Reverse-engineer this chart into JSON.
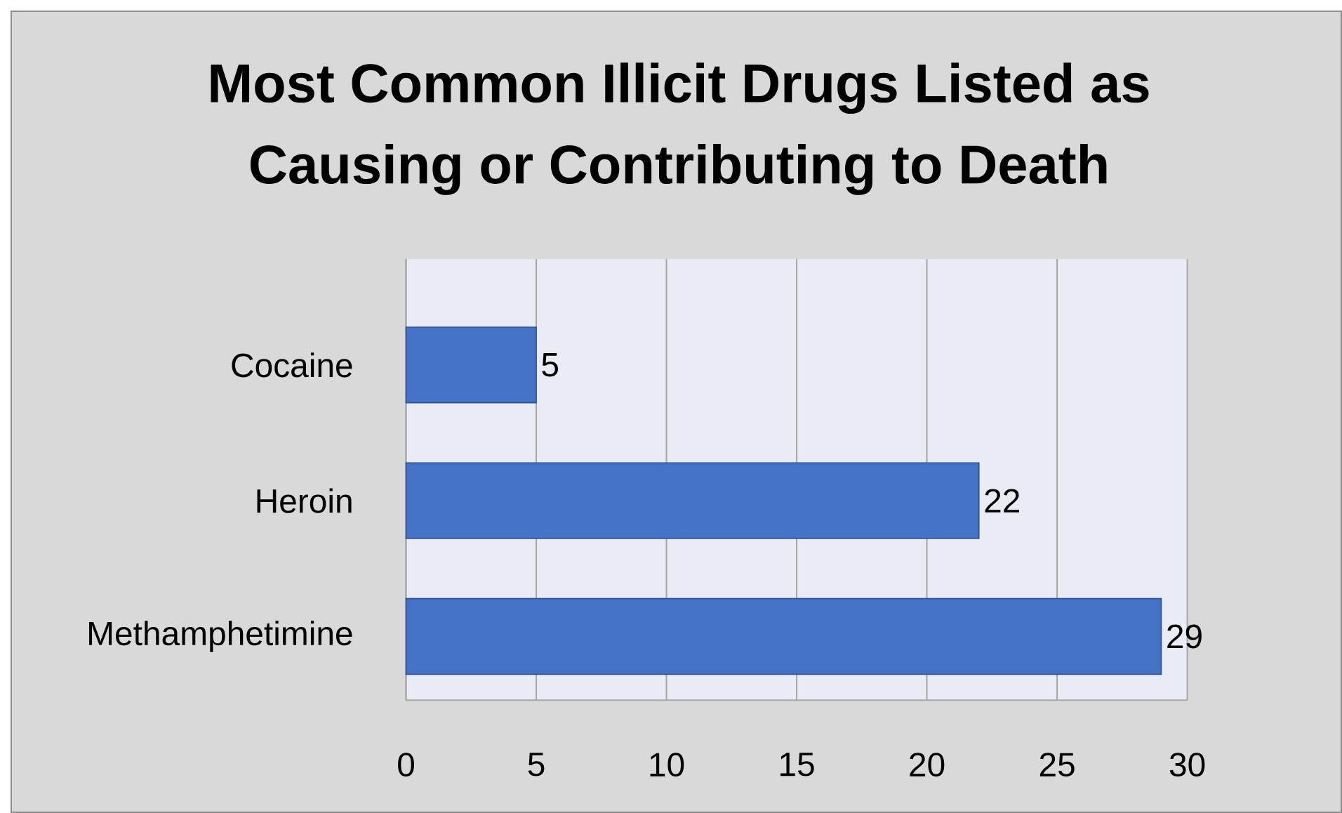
{
  "chart_data": {
    "type": "bar",
    "orientation": "horizontal",
    "title": "Most Common Illicit Drugs Listed as Causing or Contributing to Death",
    "categories": [
      "Cocaine",
      "Heroin",
      "Methamphetimine"
    ],
    "values": [
      5,
      22,
      29
    ],
    "color": "#4472c4",
    "xlim": [
      0,
      30
    ],
    "xticks": [
      0,
      5,
      10,
      15,
      20,
      25,
      30
    ],
    "grid": "x",
    "data_labels": true
  }
}
